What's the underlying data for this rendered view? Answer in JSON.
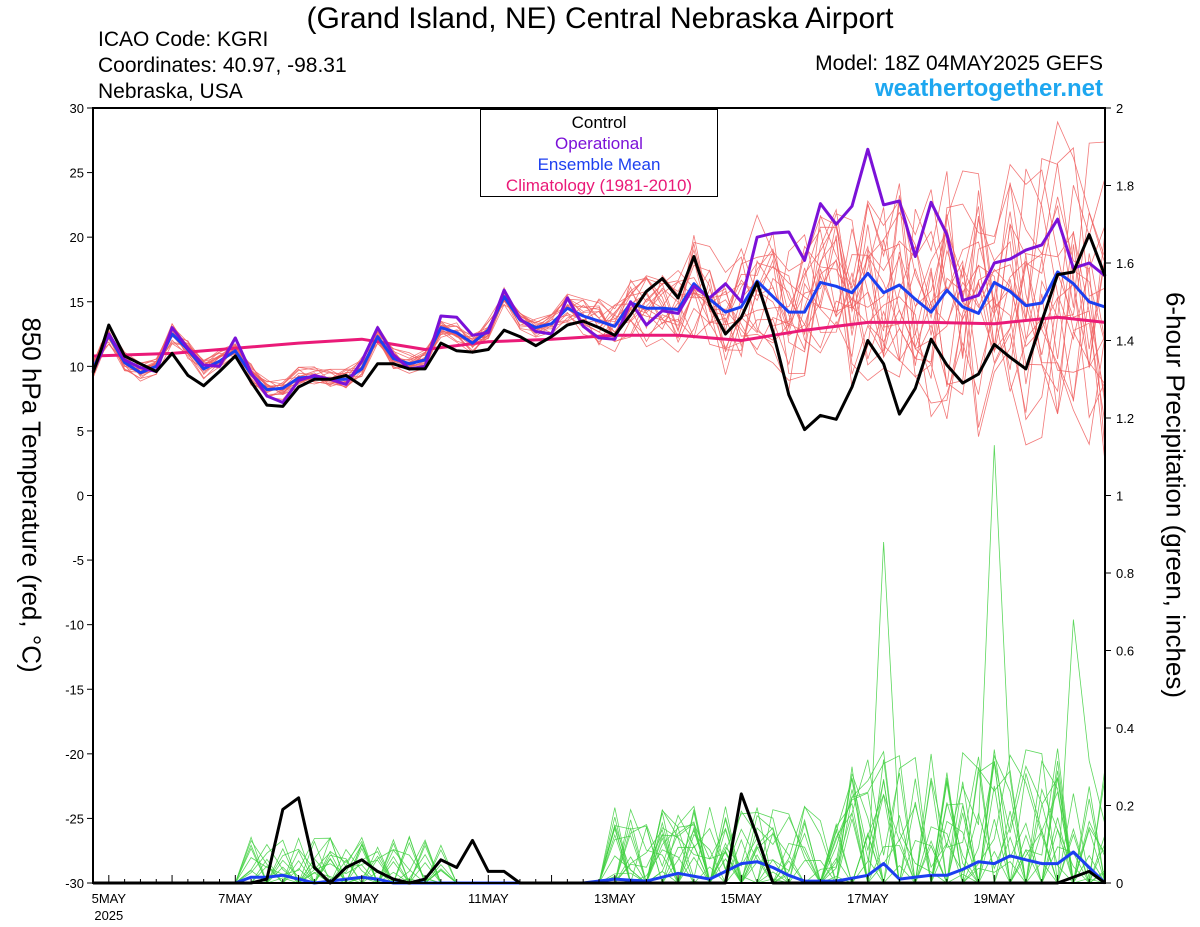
{
  "header": {
    "title": "(Grand Island, NE) Central Nebraska Airport",
    "icao": "ICAO Code: KGRI",
    "coords": "Coordinates: 40.97, -98.31",
    "region": "Nebraska, USA",
    "model": "Model: 18Z 04MAY2025 GEFS",
    "site": "weathertogether.net"
  },
  "colors": {
    "control": "#000000",
    "operational": "#7b11d8",
    "ensemble_mean": "#1c3ff0",
    "climatology": "#ea1a78",
    "member_temp": "#f06060",
    "member_precip": "#40d040",
    "site": "#1ea7f0"
  },
  "chart_data": {
    "type": "line",
    "legend": {
      "placement": "top-center",
      "entries": [
        "Control",
        "Operational",
        "Ensemble Mean",
        "Climatology (1981-2010)"
      ]
    },
    "ylabel_left": "850 hPa Temperature (red, °C)",
    "ylabel_right": "6-hour Precipitation (green, inches)",
    "ylim_left": [
      -30,
      30
    ],
    "ylim_right": [
      0,
      2
    ],
    "yticks_left": [
      "30",
      "25",
      "20",
      "15",
      "10",
      "5",
      "0",
      "-5",
      "-10",
      "-15",
      "-20",
      "-25",
      "-30"
    ],
    "yticks_right": [
      "2",
      "1.8",
      "1.6",
      "1.4",
      "1.2",
      "1",
      "0.8",
      "0.6",
      "0.4",
      "0.2",
      "0"
    ],
    "x_range_days": [
      4.75,
      20.75
    ],
    "x_tick_labels": [
      {
        "day": 5,
        "label": "5MAY",
        "year": "2025"
      },
      {
        "day": 7,
        "label": "7MAY"
      },
      {
        "day": 9,
        "label": "9MAY"
      },
      {
        "day": 11,
        "label": "11MAY"
      },
      {
        "day": 13,
        "label": "13MAY"
      },
      {
        "day": 15,
        "label": "15MAY"
      },
      {
        "day": 17,
        "label": "17MAY"
      },
      {
        "day": 19,
        "label": "19MAY"
      }
    ],
    "temperature": {
      "control": [
        [
          4.75,
          9.5
        ],
        [
          4.88,
          11.3
        ],
        [
          5.0,
          13.2
        ],
        [
          5.25,
          10.8
        ],
        [
          5.5,
          10.2
        ],
        [
          5.75,
          9.6
        ],
        [
          6.0,
          11.0
        ],
        [
          6.25,
          9.3
        ],
        [
          6.5,
          8.5
        ],
        [
          6.75,
          9.6
        ],
        [
          7.0,
          10.8
        ],
        [
          7.25,
          8.8
        ],
        [
          7.5,
          7.0
        ],
        [
          7.75,
          6.9
        ],
        [
          8.0,
          8.4
        ],
        [
          8.25,
          9.0
        ],
        [
          8.5,
          9.0
        ],
        [
          8.75,
          9.3
        ],
        [
          9.0,
          8.5
        ],
        [
          9.25,
          10.2
        ],
        [
          9.5,
          10.2
        ],
        [
          9.75,
          9.8
        ],
        [
          10.0,
          9.8
        ],
        [
          10.25,
          11.8
        ],
        [
          10.5,
          11.2
        ],
        [
          10.75,
          11.1
        ],
        [
          11.0,
          11.3
        ],
        [
          11.25,
          12.8
        ],
        [
          11.5,
          12.3
        ],
        [
          11.75,
          11.6
        ],
        [
          12.0,
          12.3
        ],
        [
          12.25,
          13.2
        ],
        [
          12.5,
          13.5
        ],
        [
          12.75,
          13.0
        ],
        [
          13.0,
          12.4
        ],
        [
          13.25,
          14.0
        ],
        [
          13.5,
          15.8
        ],
        [
          13.75,
          16.8
        ],
        [
          14.0,
          15.3
        ],
        [
          14.25,
          18.5
        ],
        [
          14.5,
          14.8
        ],
        [
          14.75,
          12.5
        ],
        [
          15.0,
          13.8
        ],
        [
          15.25,
          16.5
        ],
        [
          15.5,
          12.7
        ],
        [
          15.75,
          7.8
        ],
        [
          16.0,
          5.1
        ],
        [
          16.25,
          6.2
        ],
        [
          16.5,
          5.9
        ],
        [
          16.75,
          8.4
        ],
        [
          17.0,
          12.0
        ],
        [
          17.25,
          10.2
        ],
        [
          17.5,
          6.3
        ],
        [
          17.75,
          8.3
        ],
        [
          18.0,
          12.1
        ],
        [
          18.25,
          10.1
        ],
        [
          18.5,
          8.7
        ],
        [
          18.75,
          9.4
        ],
        [
          19.0,
          11.7
        ],
        [
          19.25,
          10.7
        ],
        [
          19.5,
          9.8
        ],
        [
          19.75,
          13.5
        ],
        [
          20.0,
          17.1
        ],
        [
          20.25,
          17.3
        ],
        [
          20.5,
          20.2
        ],
        [
          20.75,
          17.0
        ]
      ],
      "operational": [
        [
          4.75,
          9.6
        ],
        [
          4.88,
          11.0
        ],
        [
          5.0,
          12.5
        ],
        [
          5.25,
          10.5
        ],
        [
          5.5,
          9.9
        ],
        [
          5.75,
          9.6
        ],
        [
          6.0,
          13.0
        ],
        [
          6.25,
          11.4
        ],
        [
          6.5,
          10.1
        ],
        [
          6.75,
          10.0
        ],
        [
          7.0,
          12.2
        ],
        [
          7.25,
          9.5
        ],
        [
          7.5,
          7.7
        ],
        [
          7.75,
          7.2
        ],
        [
          8.0,
          8.9
        ],
        [
          8.25,
          9.3
        ],
        [
          8.5,
          9.0
        ],
        [
          8.75,
          8.6
        ],
        [
          9.0,
          10.4
        ],
        [
          9.25,
          13.0
        ],
        [
          9.5,
          10.9
        ],
        [
          9.75,
          9.8
        ],
        [
          10.0,
          10.0
        ],
        [
          10.25,
          13.9
        ],
        [
          10.5,
          13.8
        ],
        [
          10.75,
          12.4
        ],
        [
          11.0,
          12.6
        ],
        [
          11.25,
          15.9
        ],
        [
          11.5,
          13.7
        ],
        [
          11.75,
          12.7
        ],
        [
          12.0,
          12.5
        ],
        [
          12.25,
          15.3
        ],
        [
          12.5,
          13.1
        ],
        [
          12.75,
          12.2
        ],
        [
          13.0,
          12.1
        ],
        [
          13.25,
          15.0
        ],
        [
          13.5,
          13.2
        ],
        [
          13.75,
          14.3
        ],
        [
          14.0,
          14.1
        ],
        [
          14.25,
          16.2
        ],
        [
          14.5,
          15.3
        ],
        [
          14.75,
          16.4
        ],
        [
          15.0,
          15.0
        ],
        [
          15.25,
          20.0
        ],
        [
          15.5,
          20.3
        ],
        [
          15.75,
          20.4
        ],
        [
          16.0,
          18.2
        ],
        [
          16.25,
          22.6
        ],
        [
          16.5,
          21.0
        ],
        [
          16.75,
          22.4
        ],
        [
          17.0,
          26.8
        ],
        [
          17.25,
          22.5
        ],
        [
          17.5,
          22.8
        ],
        [
          17.75,
          18.5
        ],
        [
          18.0,
          22.7
        ],
        [
          18.25,
          20.2
        ],
        [
          18.5,
          15.1
        ],
        [
          18.75,
          15.5
        ],
        [
          19.0,
          18.0
        ],
        [
          19.25,
          18.3
        ],
        [
          19.5,
          19.0
        ],
        [
          19.75,
          19.4
        ],
        [
          20.0,
          21.4
        ],
        [
          20.25,
          17.6
        ],
        [
          20.5,
          18.0
        ],
        [
          20.75,
          17.0
        ]
      ],
      "ensemble_mean": [
        [
          4.75,
          9.8
        ],
        [
          4.88,
          11.2
        ],
        [
          5.0,
          12.4
        ],
        [
          5.25,
          10.3
        ],
        [
          5.5,
          9.5
        ],
        [
          5.75,
          10.0
        ],
        [
          6.0,
          12.5
        ],
        [
          6.25,
          11.3
        ],
        [
          6.5,
          9.8
        ],
        [
          6.75,
          10.4
        ],
        [
          7.0,
          11.2
        ],
        [
          7.25,
          9.4
        ],
        [
          7.5,
          8.2
        ],
        [
          7.75,
          8.3
        ],
        [
          8.0,
          9.1
        ],
        [
          8.25,
          9.2
        ],
        [
          8.5,
          9.0
        ],
        [
          8.75,
          9.0
        ],
        [
          9.0,
          9.8
        ],
        [
          9.25,
          12.3
        ],
        [
          9.5,
          10.6
        ],
        [
          9.75,
          10.2
        ],
        [
          10.0,
          10.5
        ],
        [
          10.25,
          13.0
        ],
        [
          10.5,
          12.6
        ],
        [
          10.75,
          11.8
        ],
        [
          11.0,
          12.8
        ],
        [
          11.25,
          15.4
        ],
        [
          11.5,
          13.6
        ],
        [
          11.75,
          13.0
        ],
        [
          12.0,
          13.3
        ],
        [
          12.25,
          14.5
        ],
        [
          12.5,
          13.9
        ],
        [
          12.75,
          13.5
        ],
        [
          13.0,
          13.1
        ],
        [
          13.25,
          14.9
        ],
        [
          13.5,
          14.5
        ],
        [
          13.75,
          14.5
        ],
        [
          14.0,
          14.4
        ],
        [
          14.25,
          16.4
        ],
        [
          14.5,
          15.2
        ],
        [
          14.75,
          14.2
        ],
        [
          15.0,
          14.6
        ],
        [
          15.25,
          16.6
        ],
        [
          15.5,
          15.4
        ],
        [
          15.75,
          14.2
        ],
        [
          16.0,
          14.2
        ],
        [
          16.25,
          16.5
        ],
        [
          16.5,
          16.2
        ],
        [
          16.75,
          15.7
        ],
        [
          17.0,
          17.2
        ],
        [
          17.25,
          15.7
        ],
        [
          17.5,
          16.3
        ],
        [
          17.75,
          15.2
        ],
        [
          18.0,
          14.2
        ],
        [
          18.25,
          15.9
        ],
        [
          18.5,
          14.6
        ],
        [
          18.75,
          14.1
        ],
        [
          19.0,
          16.5
        ],
        [
          19.25,
          15.8
        ],
        [
          19.5,
          14.7
        ],
        [
          19.75,
          14.9
        ],
        [
          20.0,
          17.3
        ],
        [
          20.25,
          16.4
        ],
        [
          20.5,
          15.0
        ],
        [
          20.75,
          14.6
        ]
      ],
      "climatology": [
        [
          4.75,
          10.8
        ],
        [
          6.0,
          11.0
        ],
        [
          7.0,
          11.4
        ],
        [
          8.0,
          11.8
        ],
        [
          9.0,
          12.1
        ],
        [
          10.0,
          11.3
        ],
        [
          11.0,
          11.9
        ],
        [
          12.0,
          12.1
        ],
        [
          13.0,
          12.4
        ],
        [
          14.0,
          12.4
        ],
        [
          15.0,
          12.0
        ],
        [
          16.0,
          12.8
        ],
        [
          17.0,
          13.4
        ],
        [
          18.0,
          13.4
        ],
        [
          19.0,
          13.3
        ],
        [
          20.0,
          13.8
        ],
        [
          20.75,
          13.4
        ]
      ]
    },
    "precipitation": {
      "control": [
        [
          4.75,
          0
        ],
        [
          7.25,
          0
        ],
        [
          7.5,
          0.01
        ],
        [
          7.75,
          0.19
        ],
        [
          8.0,
          0.22
        ],
        [
          8.25,
          0.04
        ],
        [
          8.5,
          0.0
        ],
        [
          8.75,
          0.04
        ],
        [
          9.0,
          0.06
        ],
        [
          9.25,
          0.03
        ],
        [
          9.5,
          0.01
        ],
        [
          9.75,
          0.0
        ],
        [
          10.0,
          0.01
        ],
        [
          10.25,
          0.06
        ],
        [
          10.5,
          0.04
        ],
        [
          10.75,
          0.11
        ],
        [
          11.0,
          0.03
        ],
        [
          11.25,
          0.03
        ],
        [
          11.5,
          0.0
        ],
        [
          14.75,
          0.0
        ],
        [
          15.0,
          0.23
        ],
        [
          15.25,
          0.12
        ],
        [
          15.5,
          0.0
        ],
        [
          16.0,
          0.0
        ],
        [
          20.0,
          0.0
        ],
        [
          20.5,
          0.03
        ],
        [
          20.75,
          0.0
        ]
      ],
      "ensemble_mean": [
        [
          4.75,
          0
        ],
        [
          7.0,
          0
        ],
        [
          7.25,
          0.015
        ],
        [
          7.5,
          0.015
        ],
        [
          7.75,
          0.02
        ],
        [
          8.0,
          0.01
        ],
        [
          8.25,
          0.0
        ],
        [
          9.0,
          0.015
        ],
        [
          9.25,
          0.01
        ],
        [
          9.5,
          0.0
        ],
        [
          10.0,
          0.0
        ],
        [
          12.5,
          0.0
        ],
        [
          13.0,
          0.01
        ],
        [
          13.5,
          0.005
        ],
        [
          14.0,
          0.025
        ],
        [
          14.5,
          0.01
        ],
        [
          15.0,
          0.05
        ],
        [
          15.25,
          0.055
        ],
        [
          15.5,
          0.04
        ],
        [
          15.75,
          0.02
        ],
        [
          16.0,
          0.005
        ],
        [
          16.5,
          0.005
        ],
        [
          17.0,
          0.02
        ],
        [
          17.25,
          0.05
        ],
        [
          17.5,
          0.01
        ],
        [
          18.0,
          0.02
        ],
        [
          18.25,
          0.02
        ],
        [
          18.5,
          0.035
        ],
        [
          18.75,
          0.055
        ],
        [
          19.0,
          0.05
        ],
        [
          19.25,
          0.07
        ],
        [
          19.5,
          0.06
        ],
        [
          19.75,
          0.05
        ],
        [
          20.0,
          0.05
        ],
        [
          20.25,
          0.08
        ],
        [
          20.5,
          0.04
        ],
        [
          20.75,
          0.0
        ]
      ]
    }
  }
}
